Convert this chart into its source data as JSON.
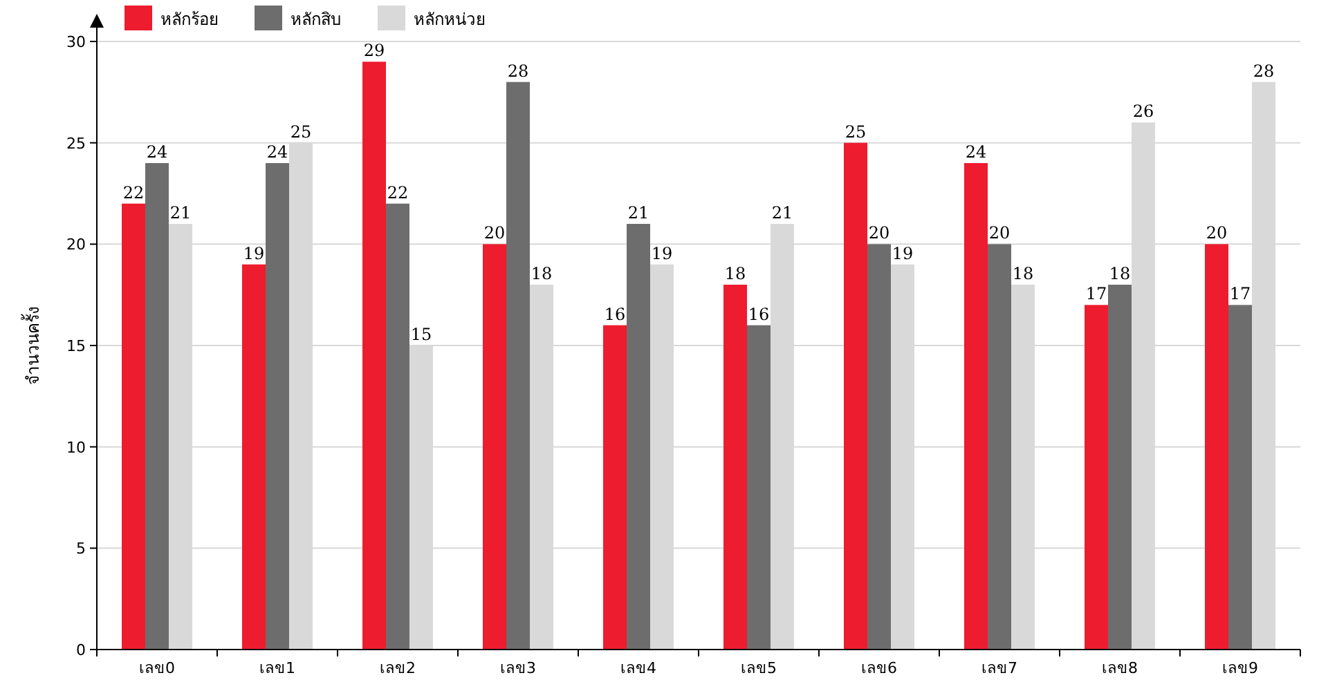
{
  "chart_data": {
    "type": "bar",
    "ylabel": "จำนวนครั้ง",
    "categories": [
      "เลข0",
      "เลข1",
      "เลข2",
      "เลข3",
      "เลข4",
      "เลข5",
      "เลข6",
      "เลข7",
      "เลข8",
      "เลข9"
    ],
    "series": [
      {
        "name": "หลักร้อย",
        "color": "#ed1c2e",
        "values": [
          22,
          19,
          29,
          20,
          16,
          18,
          25,
          24,
          17,
          20
        ]
      },
      {
        "name": "หลักสิบ",
        "color": "#6d6d6d",
        "values": [
          24,
          24,
          22,
          28,
          21,
          16,
          20,
          20,
          18,
          17
        ]
      },
      {
        "name": "หลักหน่วย",
        "color": "#d9d9d9",
        "values": [
          21,
          25,
          15,
          18,
          19,
          21,
          19,
          18,
          26,
          28
        ]
      }
    ],
    "ylim": [
      0,
      30
    ],
    "yticks": [
      0,
      5,
      10,
      15,
      20,
      25,
      30
    ],
    "grid": "y",
    "legend": "top left",
    "data_labels": true
  }
}
